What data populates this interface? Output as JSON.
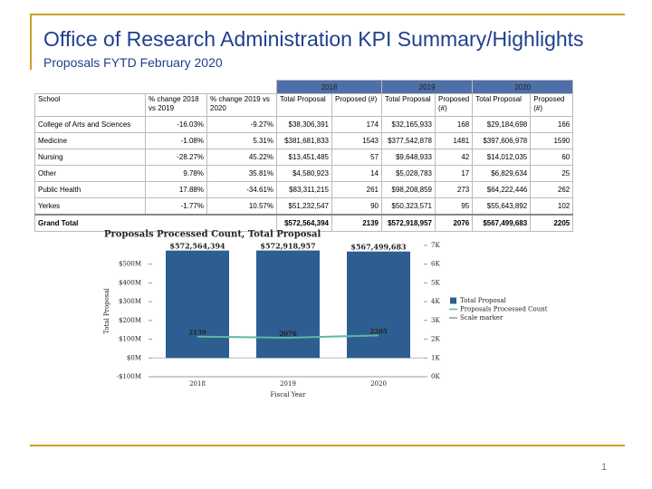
{
  "header": {
    "title": "Office of Research Administration KPI Summary/Highlights",
    "subtitle": "Proposals FYTD  February 2020"
  },
  "table": {
    "groups": [
      "2018",
      "2019",
      "2020"
    ],
    "columns": [
      "School",
      "% change 2018 vs 2019",
      "% change 2019 vs 2020",
      "Total Proposal",
      "Proposed (#)",
      "Total Proposal",
      "Proposed (#)",
      "Total Proposal",
      "Proposed (#)"
    ],
    "rows": [
      [
        "College of Arts and Sciences",
        "-16.03%",
        "-9.27%",
        "$38,306,391",
        "174",
        "$32,165,933",
        "168",
        "$29,184,698",
        "166"
      ],
      [
        "Medicine",
        "-1.08%",
        "5.31%",
        "$381,681,833",
        "1543",
        "$377,542,878",
        "1481",
        "$397,606,978",
        "1590"
      ],
      [
        "Nursing",
        "-28.27%",
        "45.22%",
        "$13,451,485",
        "57",
        "$9,648,933",
        "42",
        "$14,012,035",
        "60"
      ],
      [
        "Other",
        "9.78%",
        "35.81%",
        "$4,580,923",
        "14",
        "$5,028,783",
        "17",
        "$6,829,634",
        "25"
      ],
      [
        "Public Health",
        "17.88%",
        "-34.61%",
        "$83,311,215",
        "261",
        "$98,208,859",
        "273",
        "$64,222,446",
        "262"
      ],
      [
        "Yerkes",
        "-1.77%",
        "10.57%",
        "$51,232,547",
        "90",
        "$50,323,571",
        "95",
        "$55,643,892",
        "102"
      ]
    ],
    "total": [
      "Grand Total",
      "$572,564,394",
      "2139",
      "$572,918,957",
      "2076",
      "$567,499,683",
      "2205"
    ]
  },
  "chart_data": {
    "type": "bar_line",
    "title": "Proposals Processed Count, Total Proposal",
    "x_label": "Fiscal Year",
    "y_label": "Total Proposal",
    "categories": [
      "2018",
      "2019",
      "2020"
    ],
    "series": [
      {
        "name": "Total Proposal",
        "color": "#2e5e91",
        "type": "bar",
        "values": [
          572564394,
          572918957,
          567499683
        ],
        "value_labels": [
          "$572,564,394",
          "$572,918,957",
          "$567,499,683"
        ]
      },
      {
        "name": "Proposals Processed Count",
        "color": "#5fb8a0",
        "type": "line",
        "axis": "y2",
        "values": [
          2139,
          2076,
          2205
        ]
      },
      {
        "name": "Scale marker",
        "color": "#999999",
        "type": "marker"
      }
    ],
    "ylim": [
      -100000000,
      600000000
    ],
    "yticks": [
      {
        "value": -100000000,
        "label": "-$100M"
      },
      {
        "value": 0,
        "label": "$0M"
      },
      {
        "value": 100000000,
        "label": "$100M"
      },
      {
        "value": 200000000,
        "label": "$200M"
      },
      {
        "value": 300000000,
        "label": "$300M"
      },
      {
        "value": 400000000,
        "label": "$400M"
      },
      {
        "value": 500000000,
        "label": "$500M"
      }
    ],
    "y2lim": [
      0,
      7000
    ],
    "y2ticks": [
      {
        "value": 0,
        "label": "0K"
      },
      {
        "value": 1000,
        "label": "1K"
      },
      {
        "value": 2000,
        "label": "2K"
      },
      {
        "value": 3000,
        "label": "3K"
      },
      {
        "value": 4000,
        "label": "4K"
      },
      {
        "value": 5000,
        "label": "5K"
      },
      {
        "value": 6000,
        "label": "6K"
      },
      {
        "value": 7000,
        "label": "7K"
      }
    ],
    "grid": false
  },
  "page_number": "1"
}
